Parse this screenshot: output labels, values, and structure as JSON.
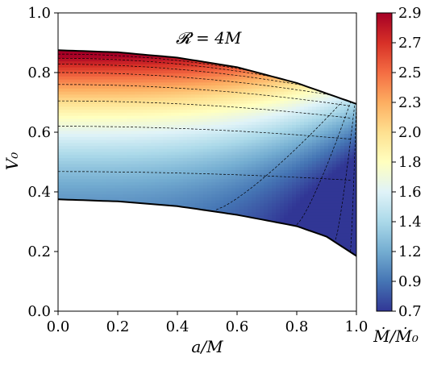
{
  "chart_data": {
    "type": "heatmap",
    "annotation": "𝓡 = 4M",
    "xlabel": "a/M",
    "ylabel": "V₀",
    "colorbar_label": "Ṁ/Ṁ₀",
    "xlim": [
      0.0,
      1.0
    ],
    "ylim": [
      0.0,
      1.0
    ],
    "x_ticks": [
      0.0,
      0.2,
      0.4,
      0.6,
      0.8,
      1.0
    ],
    "x_tick_labels": [
      "0.0",
      "0.2",
      "0.4",
      "0.6",
      "0.8",
      "1.0"
    ],
    "y_ticks": [
      0.0,
      0.2,
      0.4,
      0.6,
      0.8,
      1.0
    ],
    "y_tick_labels": [
      "0.0",
      "0.2",
      "0.4",
      "0.6",
      "0.8",
      "1.0"
    ],
    "colorbar_ticks": [
      "0.7",
      "0.9",
      "1.2",
      "1.4",
      "1.6",
      "1.8",
      "2.0",
      "2.3",
      "2.5",
      "2.7",
      "2.9"
    ],
    "colormap": "RdYlBu_r",
    "value_range": [
      0.7,
      2.9
    ],
    "region": {
      "upper_boundary": [
        [
          0.0,
          0.875
        ],
        [
          0.2,
          0.868
        ],
        [
          0.4,
          0.85
        ],
        [
          0.6,
          0.818
        ],
        [
          0.8,
          0.765
        ],
        [
          0.9,
          0.73
        ],
        [
          1.0,
          0.695
        ]
      ],
      "lower_boundary": [
        [
          0.0,
          0.375
        ],
        [
          0.2,
          0.368
        ],
        [
          0.4,
          0.352
        ],
        [
          0.6,
          0.323
        ],
        [
          0.8,
          0.285
        ],
        [
          0.9,
          0.25
        ],
        [
          1.0,
          0.185
        ]
      ]
    },
    "contour_levels_drawn": [
      "dashed black contour lines"
    ]
  }
}
